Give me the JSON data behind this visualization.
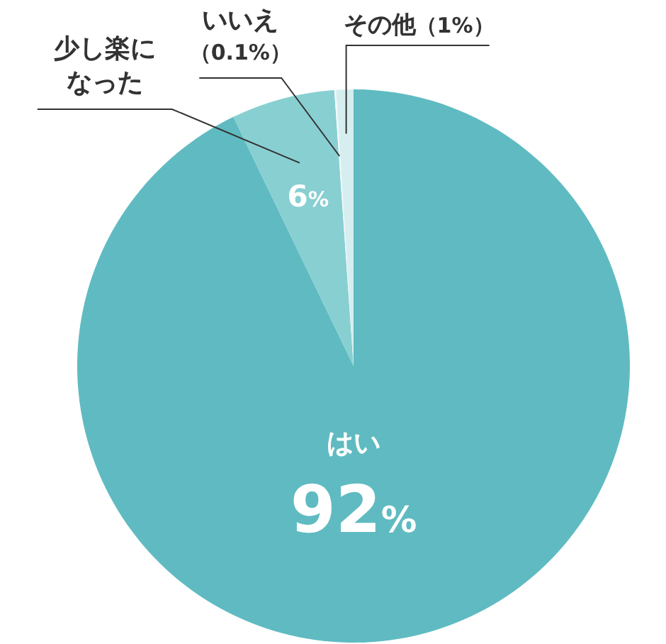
{
  "chart_data": {
    "type": "pie",
    "categories": [
      "はい",
      "少し楽になった",
      "いいえ",
      "その他"
    ],
    "values": [
      92,
      6,
      0.1,
      1
    ],
    "colors": [
      "#5fbbc1",
      "#88cfd2",
      "#f2fafa",
      "#d6eeef"
    ],
    "value_labels": [
      "92%",
      "6%",
      "（0.1%）",
      "（1%）"
    ]
  }
}
